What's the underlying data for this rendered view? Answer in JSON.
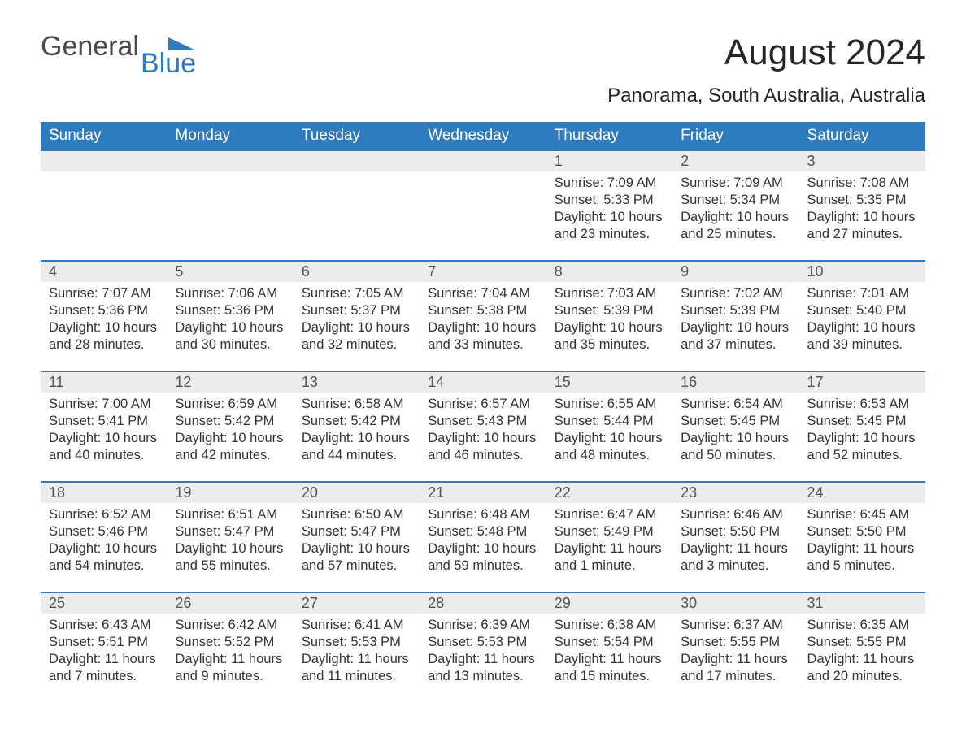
{
  "logo": {
    "general": "General",
    "blue": "Blue",
    "tri_color": "#2f7bbf"
  },
  "title": "August 2024",
  "location": "Panorama, South Australia, Australia",
  "colors": {
    "header_bg": "#2f7bbf",
    "header_text": "#ffffff",
    "daynum_bg": "#ececec",
    "daynum_text": "#555555",
    "body_text": "#333333",
    "row_border": "#2f7bbf",
    "page_bg": "#ffffff"
  },
  "day_headers": [
    "Sunday",
    "Monday",
    "Tuesday",
    "Wednesday",
    "Thursday",
    "Friday",
    "Saturday"
  ],
  "weeks": [
    [
      null,
      null,
      null,
      null,
      {
        "n": "1",
        "sunrise": "7:09 AM",
        "sunset": "5:33 PM",
        "daylight": "10 hours and 23 minutes."
      },
      {
        "n": "2",
        "sunrise": "7:09 AM",
        "sunset": "5:34 PM",
        "daylight": "10 hours and 25 minutes."
      },
      {
        "n": "3",
        "sunrise": "7:08 AM",
        "sunset": "5:35 PM",
        "daylight": "10 hours and 27 minutes."
      }
    ],
    [
      {
        "n": "4",
        "sunrise": "7:07 AM",
        "sunset": "5:36 PM",
        "daylight": "10 hours and 28 minutes."
      },
      {
        "n": "5",
        "sunrise": "7:06 AM",
        "sunset": "5:36 PM",
        "daylight": "10 hours and 30 minutes."
      },
      {
        "n": "6",
        "sunrise": "7:05 AM",
        "sunset": "5:37 PM",
        "daylight": "10 hours and 32 minutes."
      },
      {
        "n": "7",
        "sunrise": "7:04 AM",
        "sunset": "5:38 PM",
        "daylight": "10 hours and 33 minutes."
      },
      {
        "n": "8",
        "sunrise": "7:03 AM",
        "sunset": "5:39 PM",
        "daylight": "10 hours and 35 minutes."
      },
      {
        "n": "9",
        "sunrise": "7:02 AM",
        "sunset": "5:39 PM",
        "daylight": "10 hours and 37 minutes."
      },
      {
        "n": "10",
        "sunrise": "7:01 AM",
        "sunset": "5:40 PM",
        "daylight": "10 hours and 39 minutes."
      }
    ],
    [
      {
        "n": "11",
        "sunrise": "7:00 AM",
        "sunset": "5:41 PM",
        "daylight": "10 hours and 40 minutes."
      },
      {
        "n": "12",
        "sunrise": "6:59 AM",
        "sunset": "5:42 PM",
        "daylight": "10 hours and 42 minutes."
      },
      {
        "n": "13",
        "sunrise": "6:58 AM",
        "sunset": "5:42 PM",
        "daylight": "10 hours and 44 minutes."
      },
      {
        "n": "14",
        "sunrise": "6:57 AM",
        "sunset": "5:43 PM",
        "daylight": "10 hours and 46 minutes."
      },
      {
        "n": "15",
        "sunrise": "6:55 AM",
        "sunset": "5:44 PM",
        "daylight": "10 hours and 48 minutes."
      },
      {
        "n": "16",
        "sunrise": "6:54 AM",
        "sunset": "5:45 PM",
        "daylight": "10 hours and 50 minutes."
      },
      {
        "n": "17",
        "sunrise": "6:53 AM",
        "sunset": "5:45 PM",
        "daylight": "10 hours and 52 minutes."
      }
    ],
    [
      {
        "n": "18",
        "sunrise": "6:52 AM",
        "sunset": "5:46 PM",
        "daylight": "10 hours and 54 minutes."
      },
      {
        "n": "19",
        "sunrise": "6:51 AM",
        "sunset": "5:47 PM",
        "daylight": "10 hours and 55 minutes."
      },
      {
        "n": "20",
        "sunrise": "6:50 AM",
        "sunset": "5:47 PM",
        "daylight": "10 hours and 57 minutes."
      },
      {
        "n": "21",
        "sunrise": "6:48 AM",
        "sunset": "5:48 PM",
        "daylight": "10 hours and 59 minutes."
      },
      {
        "n": "22",
        "sunrise": "6:47 AM",
        "sunset": "5:49 PM",
        "daylight": "11 hours and 1 minute."
      },
      {
        "n": "23",
        "sunrise": "6:46 AM",
        "sunset": "5:50 PM",
        "daylight": "11 hours and 3 minutes."
      },
      {
        "n": "24",
        "sunrise": "6:45 AM",
        "sunset": "5:50 PM",
        "daylight": "11 hours and 5 minutes."
      }
    ],
    [
      {
        "n": "25",
        "sunrise": "6:43 AM",
        "sunset": "5:51 PM",
        "daylight": "11 hours and 7 minutes."
      },
      {
        "n": "26",
        "sunrise": "6:42 AM",
        "sunset": "5:52 PM",
        "daylight": "11 hours and 9 minutes."
      },
      {
        "n": "27",
        "sunrise": "6:41 AM",
        "sunset": "5:53 PM",
        "daylight": "11 hours and 11 minutes."
      },
      {
        "n": "28",
        "sunrise": "6:39 AM",
        "sunset": "5:53 PM",
        "daylight": "11 hours and 13 minutes."
      },
      {
        "n": "29",
        "sunrise": "6:38 AM",
        "sunset": "5:54 PM",
        "daylight": "11 hours and 15 minutes."
      },
      {
        "n": "30",
        "sunrise": "6:37 AM",
        "sunset": "5:55 PM",
        "daylight": "11 hours and 17 minutes."
      },
      {
        "n": "31",
        "sunrise": "6:35 AM",
        "sunset": "5:55 PM",
        "daylight": "11 hours and 20 minutes."
      }
    ]
  ],
  "labels": {
    "sunrise": "Sunrise: ",
    "sunset": "Sunset: ",
    "daylight": "Daylight: "
  }
}
